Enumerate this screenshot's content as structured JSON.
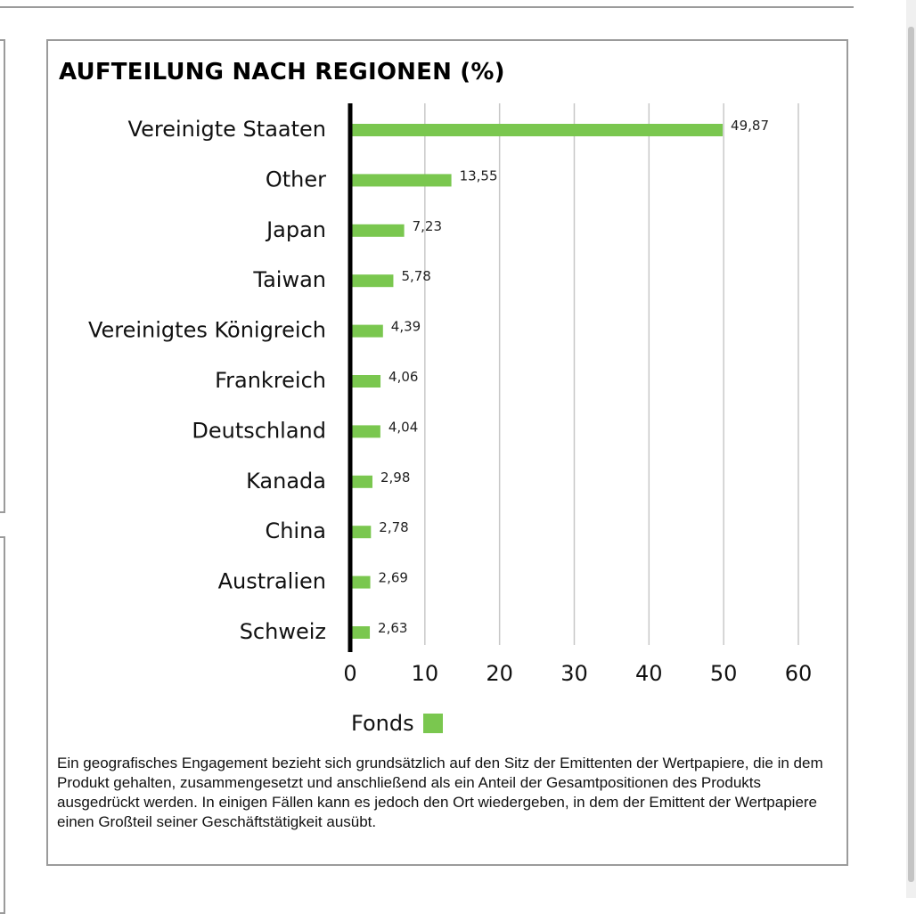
{
  "colors": {
    "bar": "#7ac74f",
    "grid": "#c8c8c8",
    "axis": "#000000",
    "border": "#9b9b9b"
  },
  "title": "AUFTEILUNG NACH REGIONEN (%)",
  "legend": {
    "label": "Fonds"
  },
  "footnote": "Ein geografisches Engagement bezieht sich grundsätzlich auf den Sitz der Emittenten der Wertpapiere, die in dem Produkt gehalten, zusammengesetzt und anschließend als ein Anteil der Gesamtpositionen des Produkts ausgedrückt werden. In einigen Fällen kann es jedoch den Ort wiedergeben, in dem der Emittent der Wertpapiere einen Großteil seiner Geschäftstätigkeit ausübt.",
  "chart_data": {
    "type": "bar",
    "orientation": "horizontal",
    "title": "AUFTEILUNG NACH REGIONEN (%)",
    "categories": [
      "Vereinigte Staaten",
      "Other",
      "Japan",
      "Taiwan",
      "Vereinigtes Königreich",
      "Frankreich",
      "Deutschland",
      "Kanada",
      "China",
      "Australien",
      "Schweiz"
    ],
    "series": [
      {
        "name": "Fonds",
        "values": [
          49.87,
          13.55,
          7.23,
          5.78,
          4.39,
          4.06,
          4.04,
          2.98,
          2.78,
          2.69,
          2.63
        ]
      }
    ],
    "value_labels": [
      "49,87",
      "13,55",
      "7,23",
      "5,78",
      "4,39",
      "4,06",
      "4,04",
      "2,98",
      "2,78",
      "2,69",
      "2,63"
    ],
    "xlim": [
      0,
      60
    ],
    "xticks": [
      0,
      10,
      20,
      30,
      40,
      50,
      60
    ],
    "xtick_labels": [
      "0",
      "10",
      "20",
      "30",
      "40",
      "50",
      "60"
    ],
    "grid": true,
    "legend_position": "bottom"
  }
}
